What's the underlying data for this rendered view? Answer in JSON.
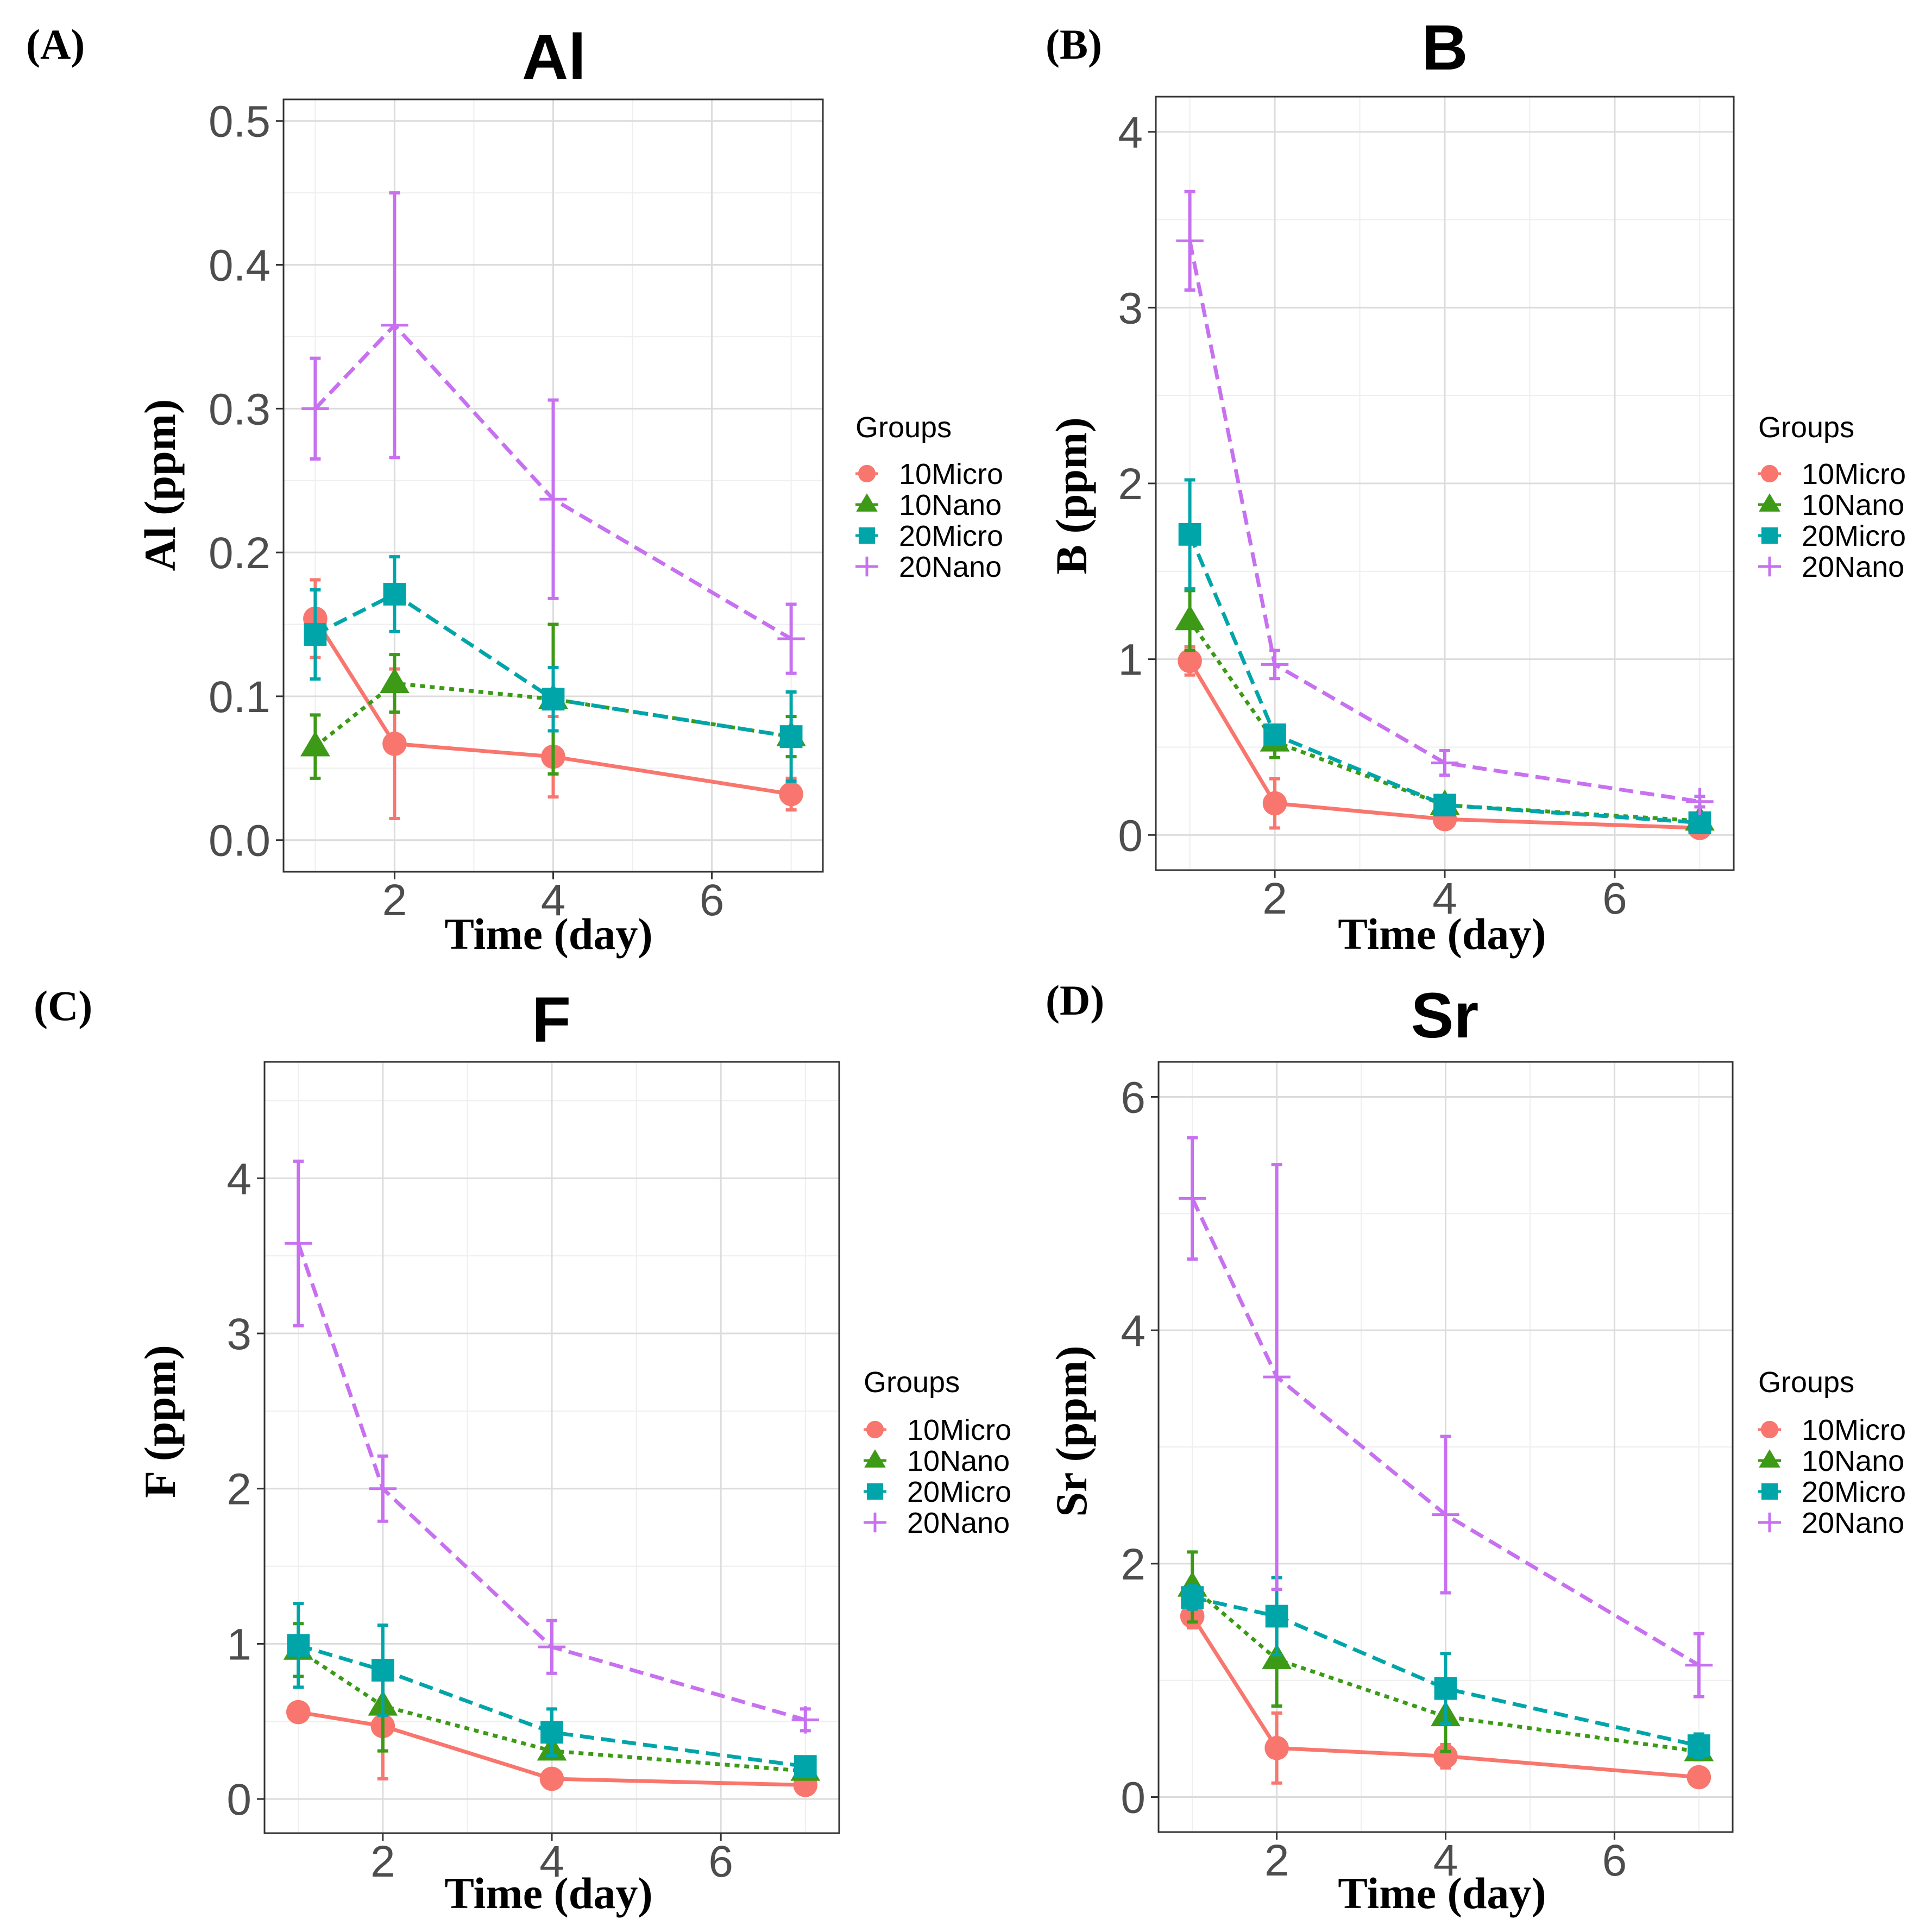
{
  "series_styles": [
    {
      "name": "10Micro",
      "color": "#F8766D",
      "dash": "solid",
      "marker": "circle"
    },
    {
      "name": "10Nano",
      "color": "#3C9A16",
      "dash": "dotted",
      "marker": "triangle"
    },
    {
      "name": "20Micro",
      "color": "#00A5AA",
      "dash": "dashed",
      "marker": "square"
    },
    {
      "name": "20Nano",
      "color": "#C770F0",
      "dash": "dashed",
      "marker": "plus"
    }
  ],
  "chart_data": [
    {
      "panel": "(A)",
      "type": "line",
      "title": "Al",
      "xlabel": "Time (day)",
      "ylabel": "Al (ppm)",
      "xlim": [
        0.6,
        7.4
      ],
      "ylim": [
        -0.022,
        0.515
      ],
      "xticks": [
        2,
        4,
        6
      ],
      "yticks": [
        0.0,
        0.1,
        0.2,
        0.3,
        0.4,
        0.5
      ],
      "ytick_labels": [
        "0.0",
        "0.1",
        "0.2",
        "0.3",
        "0.4",
        "0.5"
      ],
      "legend_title": "Groups",
      "x": [
        1,
        2,
        4,
        7
      ],
      "series": [
        {
          "name": "10Micro",
          "values": [
            0.154,
            0.067,
            0.058,
            0.032
          ],
          "err": [
            0.027,
            0.052,
            0.028,
            0.011
          ]
        },
        {
          "name": "10Nano",
          "values": [
            0.065,
            0.109,
            0.098,
            0.072
          ],
          "err": [
            0.022,
            0.02,
            0.052,
            0.014
          ]
        },
        {
          "name": "20Micro",
          "values": [
            0.143,
            0.171,
            0.098,
            0.072
          ],
          "err": [
            0.031,
            0.026,
            0.022,
            0.031
          ]
        },
        {
          "name": "20Nano",
          "values": [
            0.3,
            0.358,
            0.237,
            0.14
          ],
          "err": [
            0.035,
            0.092,
            0.069,
            0.024
          ]
        }
      ]
    },
    {
      "panel": "(B)",
      "type": "line",
      "title": "B",
      "xlabel": "Time (day)",
      "ylabel": "B (ppm)",
      "xlim": [
        0.6,
        7.4
      ],
      "ylim": [
        -0.2,
        4.2
      ],
      "xticks": [
        2,
        4,
        6
      ],
      "yticks": [
        0,
        1,
        2,
        3,
        4
      ],
      "ytick_labels": [
        "0",
        "1",
        "2",
        "3",
        "4"
      ],
      "legend_title": "Groups",
      "x": [
        1,
        2,
        4,
        7
      ],
      "series": [
        {
          "name": "10Micro",
          "values": [
            0.99,
            0.18,
            0.09,
            0.04
          ],
          "err": [
            0.08,
            0.14,
            0.02,
            0.01
          ]
        },
        {
          "name": "10Nano",
          "values": [
            1.22,
            0.53,
            0.17,
            0.08
          ],
          "err": [
            0.17,
            0.09,
            0.03,
            0.02
          ]
        },
        {
          "name": "20Micro",
          "values": [
            1.71,
            0.57,
            0.17,
            0.07
          ],
          "err": [
            0.31,
            0.05,
            0.03,
            0.02
          ]
        },
        {
          "name": "20Nano",
          "values": [
            3.38,
            0.97,
            0.41,
            0.19
          ],
          "err": [
            0.28,
            0.08,
            0.07,
            0.03
          ]
        }
      ]
    },
    {
      "panel": "(C)",
      "type": "line",
      "title": "F",
      "xlabel": "Time (day)",
      "ylabel": "F (ppm)",
      "xlim": [
        0.6,
        7.4
      ],
      "ylim": [
        -0.22,
        4.75
      ],
      "xticks": [
        2,
        4,
        6
      ],
      "yticks": [
        0,
        1,
        2,
        3,
        4
      ],
      "ytick_labels": [
        "0",
        "1",
        "2",
        "3",
        "4"
      ],
      "legend_title": "Groups",
      "x": [
        1,
        2,
        4,
        7
      ],
      "series": [
        {
          "name": "10Micro",
          "values": [
            0.56,
            0.47,
            0.13,
            0.09
          ],
          "err": [
            0.03,
            0.34,
            0.02,
            0.02
          ]
        },
        {
          "name": "10Nano",
          "values": [
            0.96,
            0.6,
            0.31,
            0.18
          ],
          "err": [
            0.17,
            0.29,
            0.05,
            0.04
          ]
        },
        {
          "name": "20Micro",
          "values": [
            0.99,
            0.83,
            0.43,
            0.21
          ],
          "err": [
            0.27,
            0.29,
            0.15,
            0.04
          ]
        },
        {
          "name": "20Nano",
          "values": [
            3.58,
            2.0,
            0.98,
            0.51
          ],
          "err": [
            0.53,
            0.21,
            0.17,
            0.07
          ]
        }
      ]
    },
    {
      "panel": "(D)",
      "type": "line",
      "title": "Sr",
      "xlabel": "Time (day)",
      "ylabel": "Sr (ppm)",
      "xlim": [
        0.6,
        7.4
      ],
      "ylim": [
        -0.3,
        6.3
      ],
      "xticks": [
        2,
        4,
        6
      ],
      "yticks": [
        0,
        2,
        4,
        6
      ],
      "ytick_labels": [
        "0",
        "2",
        "4",
        "6"
      ],
      "legend_title": "Groups",
      "x": [
        1,
        2,
        4,
        7
      ],
      "series": [
        {
          "name": "10Micro",
          "values": [
            1.55,
            0.42,
            0.35,
            0.17
          ],
          "err": [
            0.1,
            0.3,
            0.1,
            0.04
          ]
        },
        {
          "name": "10Nano",
          "values": [
            1.8,
            1.18,
            0.69,
            0.39
          ],
          "err": [
            0.3,
            0.4,
            0.3,
            0.07
          ]
        },
        {
          "name": "20Micro",
          "values": [
            1.71,
            1.55,
            0.93,
            0.44
          ],
          "err": [
            0.1,
            0.33,
            0.3,
            0.1
          ]
        },
        {
          "name": "20Nano",
          "values": [
            5.13,
            3.6,
            2.42,
            1.13
          ],
          "err": [
            0.52,
            1.82,
            0.67,
            0.27
          ]
        }
      ]
    }
  ]
}
